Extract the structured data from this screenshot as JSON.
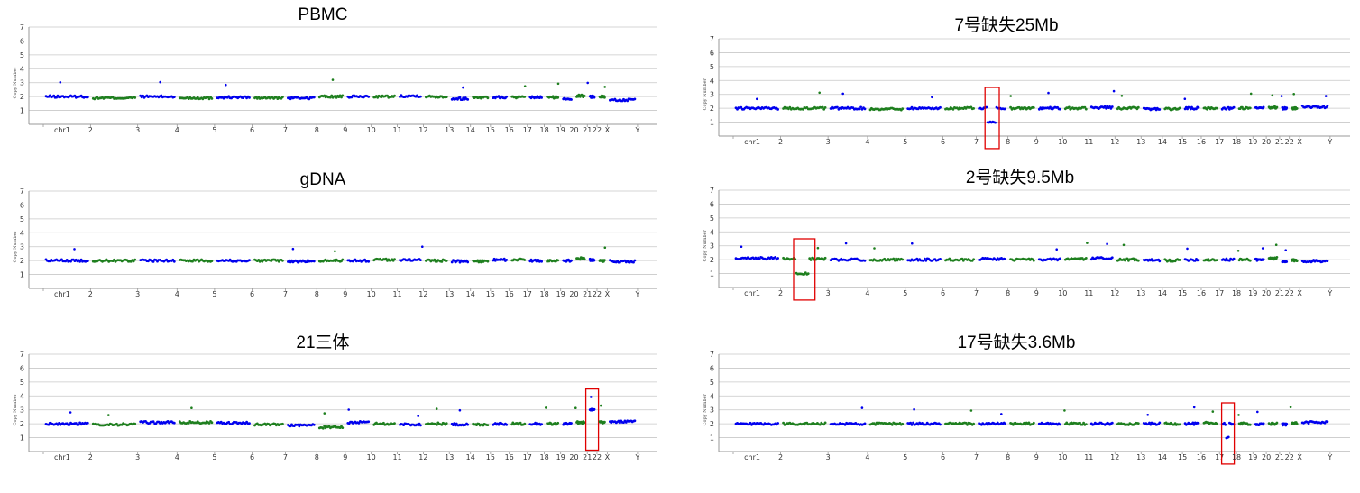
{
  "colors": {
    "series_a": "#0000ee",
    "series_b": "#1e7f1e",
    "highlight_box": "#e00000",
    "grid": "#c8c8c8"
  },
  "chart_data": [
    {
      "type": "scatter",
      "title": "PBMC",
      "ylabel": "Copy Number",
      "ylim": [
        0,
        7
      ],
      "yticks": [
        "1",
        "2",
        "3",
        "4",
        "5",
        "6",
        "7"
      ],
      "xticks": [
        "chr1",
        "2",
        "3",
        "4",
        "5",
        "6",
        "7",
        "8",
        "9",
        "10",
        "11",
        "12",
        "13",
        "14",
        "15",
        "16",
        "17",
        "18",
        "19",
        "20",
        "21",
        "22",
        "X",
        "Y"
      ],
      "grid": true,
      "baseline": [
        2.0,
        1.9,
        2.0,
        1.9,
        1.95,
        1.9,
        1.9,
        2.0,
        2.0,
        2.0,
        2.05,
        2.0,
        1.85,
        1.95,
        1.95,
        1.95,
        1.95,
        1.95,
        1.85,
        2.05,
        2.0,
        2.0,
        1.75,
        null
      ],
      "highlight": null
    },
    {
      "type": "scatter",
      "title": "7号缺失25Mb",
      "ylabel": "Copy Number",
      "ylim": [
        0,
        7
      ],
      "yticks": [
        "1",
        "2",
        "3",
        "4",
        "5",
        "6",
        "7"
      ],
      "xticks": [
        "chr1",
        "2",
        "3",
        "4",
        "5",
        "6",
        "7",
        "8",
        "9",
        "10",
        "11",
        "12",
        "13",
        "14",
        "15",
        "16",
        "17",
        "18",
        "19",
        "20",
        "21",
        "22",
        "X",
        "Y"
      ],
      "grid": true,
      "baseline": [
        2.0,
        2.0,
        2.0,
        1.95,
        2.0,
        2.0,
        2.0,
        2.0,
        2.0,
        2.0,
        2.05,
        2.0,
        1.95,
        1.95,
        2.0,
        2.0,
        2.0,
        2.0,
        2.0,
        2.05,
        2.0,
        2.0,
        2.1,
        null
      ],
      "highlight": {
        "chromosome": "7",
        "copy_number": 1.0
      }
    },
    {
      "type": "scatter",
      "title": "gDNA",
      "ylabel": "Copy Number",
      "ylim": [
        0,
        7
      ],
      "yticks": [
        "1",
        "2",
        "3",
        "4",
        "5",
        "6",
        "7"
      ],
      "xticks": [
        "chr1",
        "2",
        "3",
        "4",
        "5",
        "6",
        "7",
        "8",
        "9",
        "10",
        "11",
        "12",
        "13",
        "14",
        "15",
        "16",
        "17",
        "18",
        "19",
        "20",
        "21",
        "22",
        "X",
        "Y"
      ],
      "grid": true,
      "baseline": [
        2.0,
        2.0,
        2.0,
        2.0,
        2.0,
        2.0,
        1.95,
        2.0,
        2.0,
        2.05,
        2.05,
        2.0,
        1.95,
        1.95,
        2.05,
        2.05,
        2.0,
        2.0,
        2.0,
        2.15,
        2.05,
        2.0,
        1.95,
        null
      ],
      "highlight": null
    },
    {
      "type": "scatter",
      "title": "2号缺失9.5Mb",
      "ylabel": "Copy Number",
      "ylim": [
        0,
        7
      ],
      "yticks": [
        "1",
        "2",
        "3",
        "4",
        "5",
        "6",
        "7"
      ],
      "xticks": [
        "chr1",
        "2",
        "3",
        "4",
        "5",
        "6",
        "7",
        "8",
        "9",
        "10",
        "11",
        "12",
        "13",
        "14",
        "15",
        "16",
        "17",
        "18",
        "19",
        "20",
        "21",
        "22",
        "X",
        "Y"
      ],
      "grid": true,
      "baseline": [
        2.1,
        2.05,
        2.0,
        2.0,
        2.0,
        2.0,
        2.05,
        2.0,
        2.0,
        2.05,
        2.1,
        2.0,
        1.95,
        1.95,
        2.0,
        2.0,
        2.0,
        2.0,
        2.0,
        2.1,
        1.85,
        1.95,
        1.9,
        null
      ],
      "highlight": {
        "chromosome": "2",
        "copy_number": 1.0
      }
    },
    {
      "type": "scatter",
      "title": "21三体",
      "ylabel": "Copy Number",
      "ylim": [
        0,
        7
      ],
      "yticks": [
        "1",
        "2",
        "3",
        "4",
        "5",
        "6",
        "7"
      ],
      "xticks": [
        "chr1",
        "2",
        "3",
        "4",
        "5",
        "6",
        "7",
        "8",
        "9",
        "10",
        "11",
        "12",
        "13",
        "14",
        "15",
        "16",
        "17",
        "18",
        "19",
        "20",
        "21",
        "22",
        "X",
        "Y"
      ],
      "grid": true,
      "baseline": [
        2.0,
        1.95,
        2.1,
        2.1,
        2.05,
        1.95,
        1.9,
        1.75,
        2.1,
        2.0,
        1.95,
        2.0,
        1.95,
        1.95,
        2.0,
        2.0,
        2.0,
        2.0,
        2.0,
        2.1,
        3.0,
        2.1,
        2.15,
        null
      ],
      "highlight": {
        "chromosome": "21",
        "copy_number": 3.0
      }
    },
    {
      "type": "scatter",
      "title": "17号缺失3.6Mb",
      "ylabel": "Copy Number",
      "ylim": [
        0,
        7
      ],
      "yticks": [
        "1",
        "2",
        "3",
        "4",
        "5",
        "6",
        "7"
      ],
      "xticks": [
        "chr1",
        "2",
        "3",
        "4",
        "5",
        "6",
        "7",
        "8",
        "9",
        "10",
        "11",
        "12",
        "13",
        "14",
        "15",
        "16",
        "17",
        "18",
        "19",
        "20",
        "21",
        "22",
        "X",
        "Y"
      ],
      "grid": true,
      "baseline": [
        2.0,
        2.0,
        2.0,
        2.0,
        2.0,
        2.0,
        2.0,
        2.0,
        2.0,
        2.0,
        2.0,
        2.0,
        2.0,
        2.0,
        2.0,
        2.05,
        2.0,
        2.0,
        1.95,
        2.0,
        1.95,
        2.05,
        2.1,
        null
      ],
      "highlight": {
        "chromosome": "17",
        "copy_number": 1.0
      }
    }
  ]
}
